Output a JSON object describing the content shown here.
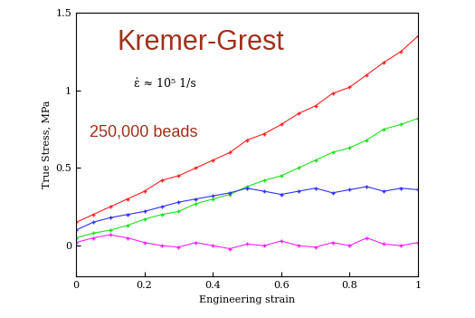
{
  "chart_data": {
    "type": "line",
    "x_label": "Engineering strain",
    "y_label": "True Stress, MPa",
    "annotations": [
      "Kremer-Grest",
      "ε̇ ≈ 10⁵ 1/s",
      "250,000 beads"
    ],
    "x": [
      0,
      0.05,
      0.1,
      0.15,
      0.2,
      0.25,
      0.3,
      0.35,
      0.4,
      0.45,
      0.5,
      0.55,
      0.6,
      0.65,
      0.7,
      0.75,
      0.8,
      0.85,
      0.9,
      0.95,
      1
    ],
    "series": [
      {
        "color": "#ff2020",
        "marker": "+",
        "line_style": "solid",
        "values": [
          0.15,
          0.2,
          0.25,
          0.3,
          0.35,
          0.42,
          0.45,
          0.5,
          0.55,
          0.6,
          0.68,
          0.72,
          0.78,
          0.85,
          0.9,
          0.98,
          1.02,
          1.1,
          1.18,
          1.25,
          1.35
        ]
      },
      {
        "color": "#20e020",
        "marker": "+",
        "line_style": "solid",
        "values": [
          0.05,
          0.08,
          0.1,
          0.13,
          0.17,
          0.2,
          0.22,
          0.27,
          0.3,
          0.33,
          0.38,
          0.42,
          0.45,
          0.5,
          0.55,
          0.6,
          0.63,
          0.68,
          0.75,
          0.78,
          0.82
        ]
      },
      {
        "color": "#3030ff",
        "marker": "+",
        "line_style": "solid",
        "values": [
          0.1,
          0.15,
          0.18,
          0.2,
          0.22,
          0.25,
          0.28,
          0.3,
          0.32,
          0.34,
          0.37,
          0.35,
          0.33,
          0.35,
          0.37,
          0.34,
          0.36,
          0.38,
          0.35,
          0.37,
          0.36
        ]
      },
      {
        "color": "#ff20ff",
        "marker": "+",
        "line_style": "solid",
        "values": [
          0.02,
          0.05,
          0.07,
          0.05,
          0.02,
          0.0,
          -0.01,
          0.02,
          0.0,
          -0.02,
          0.01,
          0.0,
          0.03,
          0.0,
          -0.01,
          0.02,
          0.0,
          0.05,
          0.01,
          0.0,
          0.02
        ]
      }
    ],
    "xlim": [
      0,
      1
    ],
    "xticks": [
      0,
      0.2,
      0.4,
      0.6,
      0.8,
      1
    ],
    "ylim": [
      -0.2,
      1.5
    ],
    "yticks": [
      0,
      0.5,
      1,
      1.5
    ],
    "grid": false
  }
}
